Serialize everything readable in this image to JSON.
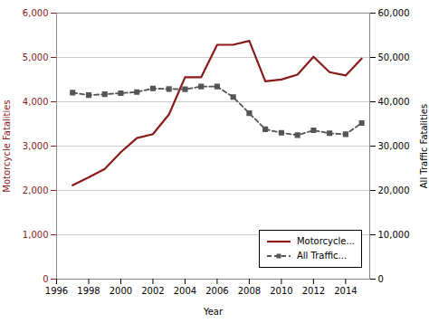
{
  "chart_data": {
    "type": "line",
    "xlabel": "Year",
    "ylabel": "Motorcycle Fatalities",
    "y2label": "All Traffic Fatalities",
    "x": [
      1997,
      1998,
      1999,
      2000,
      2001,
      2002,
      2003,
      2004,
      2005,
      2006,
      2007,
      2008,
      2009,
      2010,
      2011,
      2012,
      2013,
      2014,
      2015
    ],
    "series": [
      {
        "name": "Motorcycle...",
        "color": "#8B1A1A",
        "line_style": "solid",
        "values": [
          2116,
          2294,
          2483,
          2862,
          3181,
          3270,
          3714,
          4553,
          4553,
          5286,
          5286,
          5374,
          4462,
          4502,
          4612,
          5015,
          4668,
          4594,
          4976
        ]
      },
      {
        "name": "All Traffic...",
        "color": "#555555",
        "line_style": "dashed",
        "marker": "square",
        "axis": "y2",
        "values": [
          42065,
          41501,
          41717,
          41945,
          42196,
          43005,
          42884,
          42836,
          43443,
          43443,
          41059,
          37423,
          33808,
          32999,
          32479,
          33561,
          32894,
          32675,
          35200
        ]
      }
    ],
    "xlim": [
      1996,
      2015.5
    ],
    "xticks": [
      1996,
      1998,
      2000,
      2002,
      2004,
      2006,
      2008,
      2010,
      2012,
      2014
    ],
    "ylim": [
      0,
      6000
    ],
    "yticks": [
      0,
      {
        "value": 1000,
        "label": "1,000"
      },
      {
        "value": 2000,
        "label": "2,000"
      },
      {
        "value": 3000,
        "label": "3,000"
      },
      {
        "value": 4000,
        "label": "4,000"
      },
      {
        "value": 5000,
        "label": "5,000"
      },
      {
        "value": 6000,
        "label": "6,000"
      }
    ],
    "y2lim": [
      0,
      60000
    ],
    "y2ticks": [
      0,
      {
        "value": 10000,
        "label": "10,000"
      },
      {
        "value": 20000,
        "label": "20,000"
      },
      {
        "value": 30000,
        "label": "30,000"
      },
      {
        "value": 40000,
        "label": "40,000"
      },
      {
        "value": 50000,
        "label": "50,000"
      },
      {
        "value": 60000,
        "label": "60,000"
      }
    ],
    "grid": true,
    "legend": "lower right"
  }
}
